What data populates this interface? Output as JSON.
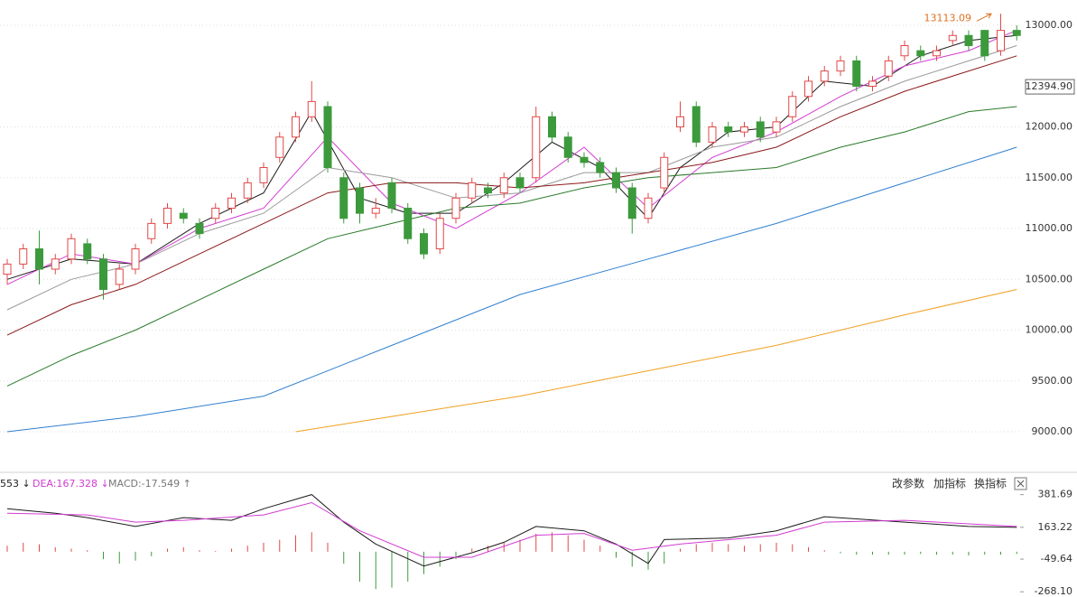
{
  "chart_data": [
    {
      "type": "candlestick",
      "open": [
        10550,
        10650,
        10800,
        10600,
        10700,
        10850,
        10700,
        10450,
        10600,
        10900,
        11050,
        11150,
        11050,
        11100,
        11200,
        11300,
        11450,
        11700,
        11900,
        12100,
        12200,
        11500,
        11400,
        11150,
        11450,
        11200,
        10950,
        10800,
        11100,
        11300,
        11400,
        11350,
        11500,
        11500,
        12100,
        11900,
        11700,
        11650,
        11550,
        11400,
        11100,
        11400,
        12000,
        12200,
        11850,
        12000,
        11950,
        12050,
        11950,
        12100,
        12300,
        12450,
        12550,
        12650,
        12400,
        12500,
        12700,
        12750,
        12700,
        12850,
        12900,
        12950,
        12750,
        12950
      ],
      "high": [
        10700,
        10850,
        10980,
        10750,
        10950,
        10900,
        10750,
        10650,
        10850,
        11100,
        11250,
        11200,
        11100,
        11250,
        11350,
        11500,
        11650,
        11950,
        12150,
        12450,
        12250,
        11550,
        11450,
        11300,
        11500,
        11250,
        11000,
        11150,
        11350,
        11500,
        11450,
        11550,
        11550,
        12200,
        12150,
        11950,
        11750,
        11700,
        11600,
        11450,
        11350,
        11750,
        12250,
        12250,
        12050,
        12050,
        12050,
        12100,
        12100,
        12350,
        12500,
        12600,
        12700,
        12700,
        12500,
        12700,
        12850,
        12800,
        12800,
        12950,
        12950,
        12950,
        13113.09,
        13000
      ],
      "low": [
        10450,
        10600,
        10450,
        10550,
        10650,
        10650,
        10300,
        10400,
        10550,
        10850,
        11000,
        11050,
        10900,
        11050,
        11150,
        11250,
        11400,
        11650,
        11850,
        12050,
        11550,
        11050,
        11050,
        11100,
        11150,
        10850,
        10700,
        10750,
        11050,
        11250,
        11300,
        11300,
        11350,
        11450,
        11850,
        11650,
        11600,
        11500,
        11350,
        10950,
        11050,
        11350,
        11950,
        11800,
        11800,
        11900,
        11900,
        11850,
        11900,
        12050,
        12250,
        12400,
        12500,
        12350,
        12350,
        12450,
        12650,
        12650,
        12650,
        12800,
        12750,
        12650,
        12700,
        12850
      ],
      "close": [
        10650,
        10800,
        10600,
        10700,
        10900,
        10700,
        10400,
        10600,
        10800,
        11050,
        11200,
        11100,
        10950,
        11200,
        11300,
        11450,
        11600,
        11900,
        12100,
        12250,
        11600,
        11100,
        11150,
        11200,
        11200,
        10900,
        10750,
        11100,
        11300,
        11450,
        11350,
        11500,
        11400,
        12100,
        11900,
        11700,
        11650,
        11550,
        11400,
        11100,
        11300,
        11700,
        12100,
        11850,
        12000,
        11950,
        12000,
        11900,
        12050,
        12300,
        12450,
        12550,
        12650,
        12400,
        12450,
        12650,
        12800,
        12700,
        12750,
        12900,
        12800,
        12700,
        12950,
        12900
      ],
      "up_color": "#e04848",
      "down_color": "#3c9a3c",
      "lines": [
        {
          "color": "#1a1a1a",
          "x": [
            0,
            4,
            8,
            12,
            16,
            19,
            22,
            25,
            28,
            31,
            34,
            37,
            40,
            42,
            45,
            48,
            51,
            54,
            57,
            60,
            63
          ],
          "values": [
            10500,
            10700,
            10650,
            11050,
            11350,
            12150,
            11300,
            11150,
            11150,
            11450,
            11850,
            11600,
            11100,
            11600,
            11950,
            12000,
            12450,
            12400,
            12700,
            12850,
            12900
          ]
        },
        {
          "color": "#d23cd2",
          "x": [
            0,
            4,
            8,
            12,
            16,
            20,
            24,
            28,
            32,
            36,
            40,
            44,
            48,
            52,
            56,
            60,
            63
          ],
          "values": [
            10450,
            10750,
            10650,
            11000,
            11200,
            11900,
            11250,
            11000,
            11350,
            11800,
            11200,
            11700,
            11950,
            12300,
            12600,
            12750,
            12950
          ]
        },
        {
          "color": "#9a9a9a",
          "x": [
            0,
            4,
            8,
            12,
            16,
            20,
            24,
            28,
            32,
            36,
            40,
            44,
            48,
            52,
            56,
            60,
            63
          ],
          "values": [
            10200,
            10500,
            10650,
            10950,
            11150,
            11600,
            11500,
            11300,
            11350,
            11550,
            11550,
            11800,
            11900,
            12200,
            12450,
            12650,
            12800
          ]
        },
        {
          "color": "#8b1a1a",
          "x": [
            0,
            4,
            8,
            12,
            16,
            20,
            24,
            28,
            32,
            36,
            40,
            44,
            48,
            52,
            56,
            60,
            63
          ],
          "values": [
            9950,
            10250,
            10450,
            10750,
            11050,
            11350,
            11450,
            11450,
            11400,
            11450,
            11550,
            11650,
            11800,
            12100,
            12350,
            12550,
            12700
          ]
        },
        {
          "color": "#2a7a2a",
          "x": [
            0,
            4,
            8,
            12,
            16,
            20,
            24,
            28,
            32,
            36,
            40,
            44,
            48,
            52,
            56,
            60,
            63
          ],
          "values": [
            9450,
            9750,
            10000,
            10300,
            10600,
            10900,
            11050,
            11200,
            11250,
            11400,
            11500,
            11550,
            11600,
            11800,
            11950,
            12150,
            12200
          ]
        },
        {
          "color": "#2f7fd0",
          "x": [
            0,
            8,
            16,
            24,
            32,
            40,
            48,
            56,
            63
          ],
          "values": [
            9000,
            9150,
            9350,
            9850,
            10350,
            10700,
            11050,
            11450,
            11800
          ]
        },
        {
          "color": "#f0a020",
          "x": [
            18,
            24,
            32,
            40,
            48,
            56,
            63
          ],
          "values": [
            9000,
            9150,
            9350,
            9600,
            9850,
            10150,
            10400
          ]
        }
      ],
      "ylim": [
        8609,
        13249
      ],
      "yticks": [
        {
          "value": 9000,
          "label": "9000.00"
        },
        {
          "value": 9500,
          "label": "9500.00"
        },
        {
          "value": 10000,
          "label": "10000.00"
        },
        {
          "value": 10500,
          "label": "10500.00"
        },
        {
          "value": 11000,
          "label": "11000.00"
        },
        {
          "value": 11500,
          "label": "11500.00"
        },
        {
          "value": 12000,
          "label": "12000.00"
        },
        {
          "value": 13000,
          "label": "13000.00"
        }
      ],
      "price_marker": {
        "value": 12394.9,
        "label": "12394.90"
      },
      "high_annotation": {
        "value": 13113.09,
        "label": "13113.09"
      },
      "grid": true
    },
    {
      "type": "macd",
      "header": [
        "553 ↓",
        "DEA:167.328 ↓",
        "MACD:-17.549 ↑"
      ],
      "histogram": [
        40,
        60,
        50,
        30,
        20,
        10,
        -50,
        -80,
        -60,
        -30,
        20,
        30,
        10,
        5,
        20,
        40,
        60,
        80,
        110,
        130,
        60,
        -80,
        -200,
        -250,
        -240,
        -200,
        -150,
        -100,
        -50,
        20,
        40,
        60,
        80,
        120,
        130,
        110,
        80,
        40,
        -40,
        -100,
        -120,
        -80,
        20,
        50,
        60,
        50,
        40,
        50,
        60,
        50,
        30,
        10,
        -10,
        -20,
        -20,
        -20,
        -20,
        -15,
        -20,
        -20,
        -25,
        -20,
        -20,
        -15
      ],
      "up_color": "#e04848",
      "down_color": "#3c9a3c",
      "lines": [
        {
          "color": "#1a1a1a",
          "x": [
            0,
            3,
            5,
            8,
            11,
            14,
            16,
            19,
            21,
            23,
            26,
            29,
            31,
            33,
            36,
            38,
            40,
            41,
            45,
            48,
            51,
            56,
            60,
            63
          ],
          "values": [
            287,
            257,
            228,
            169,
            228,
            210,
            287,
            382,
            198,
            51,
            -96,
            -7,
            63,
            169,
            140,
            51,
            -78,
            81,
            92,
            140,
            234,
            198,
            169,
            163
          ]
        },
        {
          "color": "#d23cd2",
          "x": [
            0,
            5,
            8,
            11,
            16,
            19,
            22,
            26,
            29,
            33,
            36,
            39,
            42,
            48,
            51,
            56,
            63
          ],
          "values": [
            257,
            246,
            198,
            210,
            246,
            328,
            140,
            -37,
            -37,
            110,
            122,
            10,
            51,
            110,
            198,
            210,
            169
          ]
        }
      ],
      "ylim": [
        -303,
        440
      ],
      "yticks": [
        381.69,
        163.22,
        -49.64,
        {
          "value": -268.1,
          "label": "-268.10"
        }
      ]
    }
  ],
  "toolbar": [
    "改参数",
    "加指标",
    "换指标"
  ]
}
